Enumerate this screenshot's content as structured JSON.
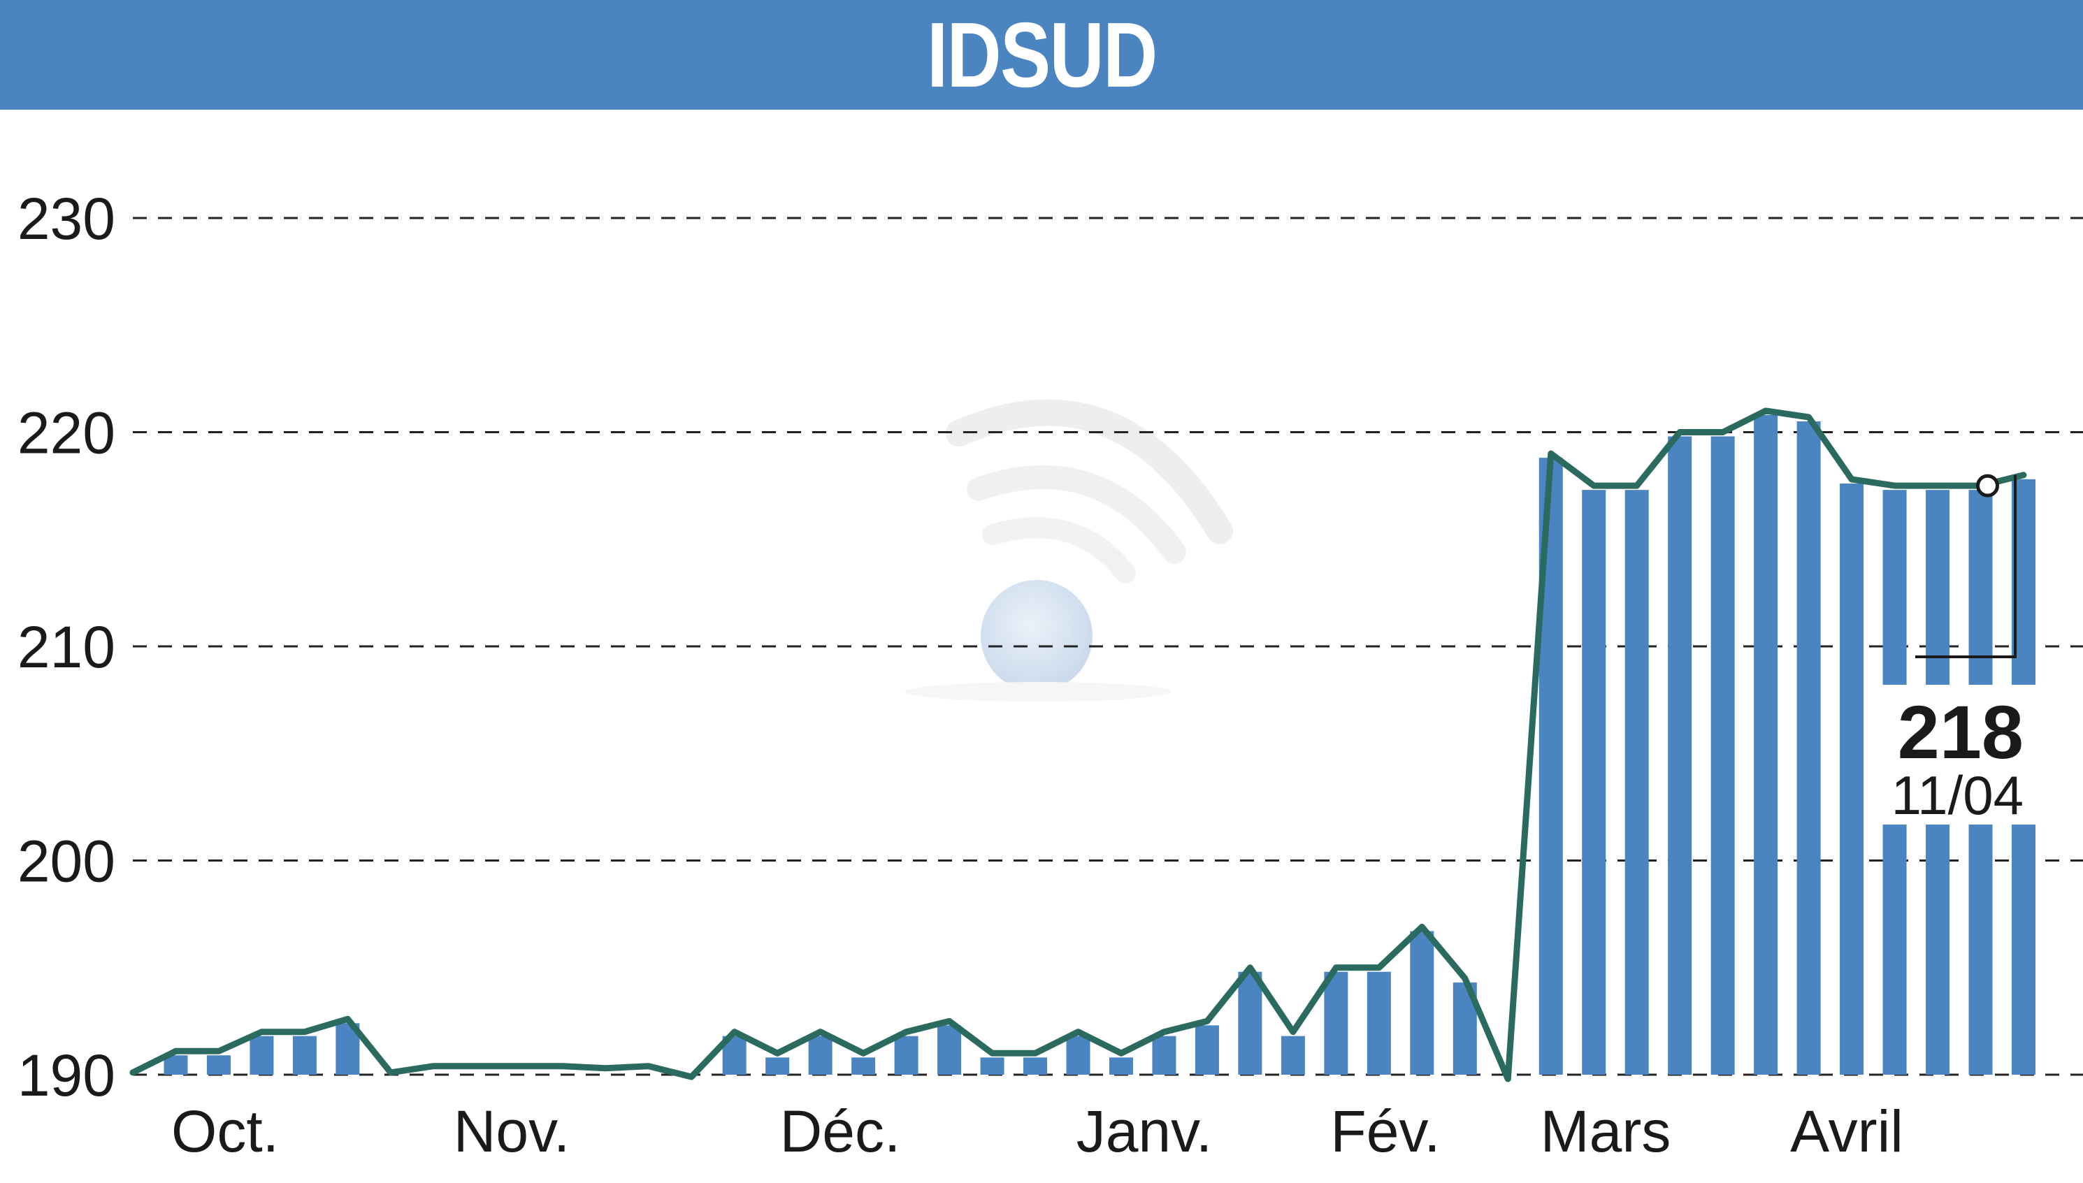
{
  "header": {
    "title": "IDSUD"
  },
  "colors": {
    "header_bg": "#4a84c1",
    "bar": "#4a84c1",
    "line": "#2b6b5f",
    "grid": "#222222",
    "text": "#1a1a1a"
  },
  "icons": {
    "watermark": "signal-watermark-icon"
  },
  "chart_data": {
    "type": "line",
    "title": "IDSUD",
    "xlabel": "",
    "ylabel": "",
    "ylim": [
      190,
      230
    ],
    "yticks": [
      190,
      200,
      210,
      220,
      230
    ],
    "grid": "horizontal dashed",
    "month_labels": [
      "Oct.",
      "Nov.",
      "Déc.",
      "Janv.",
      "Fév.",
      "Mars",
      "Avril"
    ],
    "series": [
      {
        "name": "",
        "values": [
          190.1,
          191.1,
          191.1,
          192.0,
          192.0,
          192.6,
          190.1,
          190.4,
          190.4,
          190.4,
          190.4,
          190.3,
          190.4,
          189.9,
          192.0,
          191.0,
          192.0,
          191.0,
          192.0,
          192.5,
          191.0,
          191.0,
          192.0,
          191.0,
          192.0,
          192.5,
          195.0,
          192.0,
          195.0,
          195.0,
          196.9,
          194.5,
          189.8,
          219.0,
          217.5,
          217.5,
          220.0,
          220.0,
          221.0,
          220.7,
          217.8,
          217.5,
          217.5,
          217.5,
          218.0
        ]
      }
    ],
    "last_value": {
      "value": "218",
      "date": "11/04"
    }
  }
}
